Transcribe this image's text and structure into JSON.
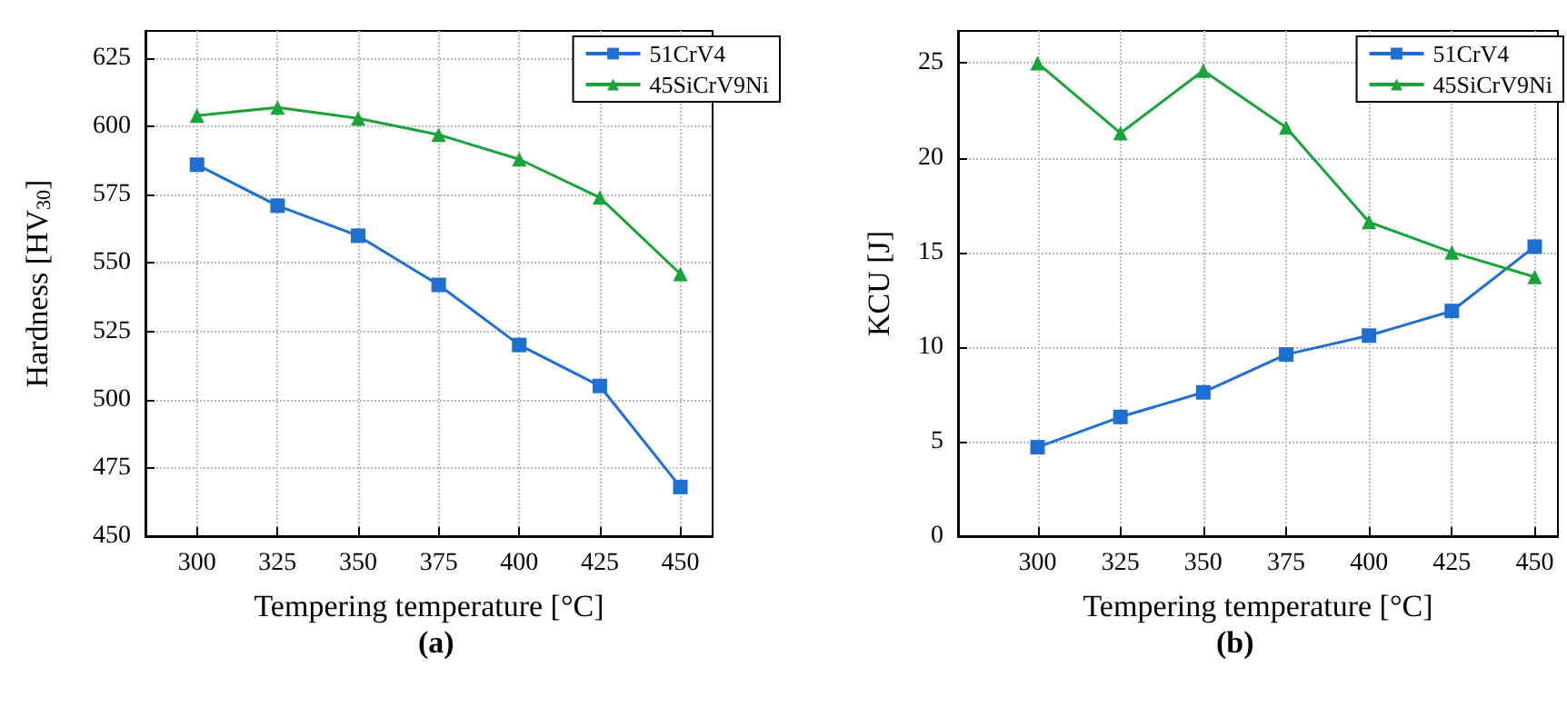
{
  "chart_data": [
    {
      "type": "line",
      "xlabel": "Tempering temperature [°C]",
      "ylabel": "Hardness [HV$_{30}$]",
      "annotations": [
        "(a)"
      ],
      "x": [
        300,
        325,
        350,
        375,
        400,
        425,
        450
      ],
      "xlim": [
        284,
        460
      ],
      "xticks": [
        300,
        325,
        350,
        375,
        400,
        425,
        450
      ],
      "ylim": [
        450,
        635
      ],
      "yticks": [
        450,
        475,
        500,
        525,
        550,
        575,
        600,
        625
      ],
      "grid": true,
      "legend": "top right",
      "line_style": "solid",
      "series": [
        {
          "name": "51CrV4",
          "color": "#1f6fd1",
          "marker": "square",
          "values": [
            586,
            571,
            560,
            542,
            520,
            505,
            468
          ]
        },
        {
          "name": "45SiCrV9Ni",
          "color": "#1aa33a",
          "marker": "triangle",
          "values": [
            604,
            607,
            603,
            597,
            588,
            574,
            546
          ]
        }
      ]
    },
    {
      "type": "line",
      "xlabel": "Tempering temperature [°C]",
      "ylabel": "KCU [J]",
      "annotations": [
        "(b)"
      ],
      "x": [
        300,
        325,
        350,
        375,
        400,
        425,
        450
      ],
      "xlim": [
        276,
        457
      ],
      "xticks": [
        300,
        325,
        350,
        375,
        400,
        425,
        450
      ],
      "ylim": [
        0,
        26.7
      ],
      "yticks": [
        0,
        5,
        10,
        15,
        20,
        25
      ],
      "grid": true,
      "legend": "top right",
      "line_style": "solid",
      "series": [
        {
          "name": "51CrV4",
          "color": "#1f6fd1",
          "marker": "square",
          "values": [
            4.7,
            6.3,
            7.6,
            9.6,
            10.6,
            11.9,
            15.3
          ]
        },
        {
          "name": "45SiCrV9Ni",
          "color": "#1aa33a",
          "marker": "triangle",
          "values": [
            25.0,
            21.3,
            24.6,
            21.6,
            16.6,
            15.0,
            13.7
          ]
        }
      ]
    }
  ]
}
